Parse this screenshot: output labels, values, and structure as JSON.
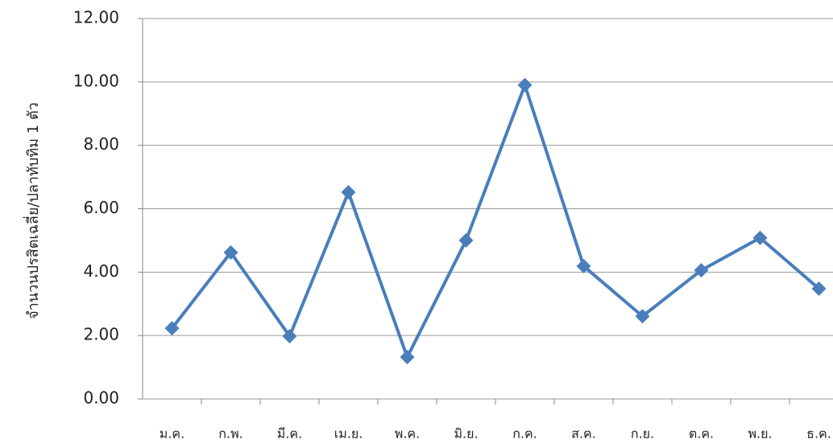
{
  "chart_data": {
    "type": "line",
    "ylabel": "จำนวนปรสิตเฉลี่ย/ปลาทับทิม 1 ตัว",
    "categories": [
      "ม.ค.",
      "ก.พ.",
      "มี.ค.",
      "เม.ย.",
      "พ.ค.",
      "มิ.ย.",
      "ก.ค.",
      "ส.ค.",
      "ก.ย.",
      "ต.ค.",
      "พ.ย.",
      "ธ.ค."
    ],
    "series": [
      {
        "color": "#4a7ebb",
        "values": [
          2.23,
          4.62,
          1.98,
          6.52,
          1.32,
          5.0,
          9.9,
          4.19,
          2.61,
          4.06,
          5.08,
          3.48
        ]
      }
    ],
    "ylim": [
      0,
      12
    ],
    "yticks": [
      {
        "value": 0,
        "label": "0.00"
      },
      {
        "value": 2,
        "label": "2.00"
      },
      {
        "value": 4,
        "label": "4.00"
      },
      {
        "value": 6,
        "label": "6.00"
      },
      {
        "value": 8,
        "label": "8.00"
      },
      {
        "value": 10,
        "label": "10.00"
      },
      {
        "value": 12,
        "label": "12.00"
      }
    ],
    "grid": true
  }
}
